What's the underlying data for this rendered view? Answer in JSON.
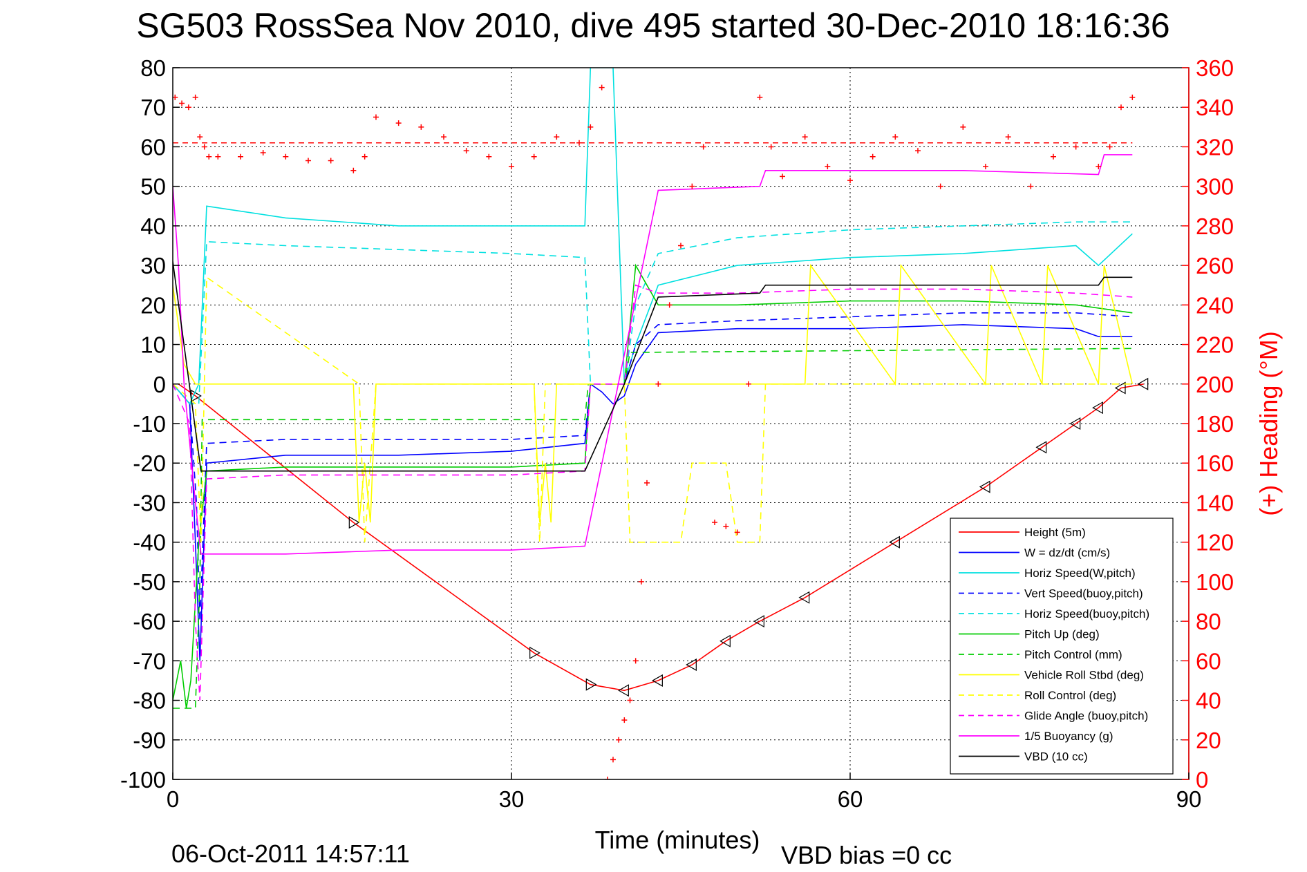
{
  "chart_data": {
    "type": "line",
    "title": "SG503 RossSea Nov 2010, dive 495 started 30-Dec-2010 18:16:36",
    "xlabel": "Time (minutes)",
    "ylabel_right": "(+) Heading (°M)",
    "footer_date": "06-Oct-2011 14:57:11",
    "footer_vbd": "VBD bias =0 cc",
    "xlim": [
      0,
      90
    ],
    "ylim_left": [
      -100,
      80
    ],
    "ylim_right": [
      0,
      360
    ],
    "xticks": [
      0,
      30,
      60,
      90
    ],
    "yticks_left": [
      80,
      70,
      60,
      50,
      40,
      30,
      20,
      10,
      0,
      -10,
      -20,
      -30,
      -40,
      -50,
      -60,
      -70,
      -80,
      -90,
      -100
    ],
    "yticks_right": [
      360,
      340,
      320,
      300,
      280,
      260,
      240,
      220,
      200,
      180,
      160,
      140,
      120,
      100,
      80,
      60,
      40,
      20,
      0
    ],
    "grid": true,
    "legend_position": "bottom-right",
    "heading_reference": 322,
    "series": [
      {
        "name": "Height (5m)",
        "color": "#ff0000",
        "style": "solid",
        "x": [
          0.5,
          2,
          16,
          32,
          37,
          40,
          43,
          46,
          49,
          52,
          56,
          64,
          72,
          77,
          80,
          82,
          84,
          86
        ],
        "y": [
          0,
          -3,
          -35,
          -68,
          -76,
          -77.5,
          -75,
          -71,
          -65,
          -60,
          -54,
          -40,
          -26,
          -16,
          -10,
          -6,
          -1,
          0
        ]
      },
      {
        "name": "W = dz/dt (cm/s)",
        "color": "#0000ff",
        "style": "solid",
        "x": [
          0,
          1.5,
          2.0,
          2.4,
          3,
          10,
          20,
          30,
          36.5,
          37,
          38,
          39,
          40,
          41,
          43,
          50,
          60,
          70,
          80,
          82,
          85
        ],
        "y": [
          0,
          -5,
          -40,
          -70,
          -20,
          -18,
          -18,
          -17,
          -15,
          0,
          -2,
          -5,
          -3,
          5,
          13,
          14,
          14,
          15,
          14,
          12,
          12
        ]
      },
      {
        "name": "Horiz Speed(W,pitch)",
        "color": "#00e0e0",
        "style": "solid",
        "x": [
          0,
          1.5,
          2.3,
          3,
          10,
          20,
          30,
          36.5,
          37,
          38,
          39,
          40,
          41,
          43,
          50,
          60,
          70,
          80,
          82,
          85
        ],
        "y": [
          0,
          -5,
          0,
          45,
          42,
          40,
          40,
          40,
          80,
          80,
          80,
          0,
          10,
          25,
          30,
          32,
          33,
          35,
          30,
          38
        ]
      },
      {
        "name": "Vert Speed(buoy,pitch)",
        "color": "#0000ff",
        "style": "dashed",
        "x": [
          0,
          1.5,
          2.1,
          2.4,
          3,
          10,
          20,
          30,
          36.5,
          37,
          39,
          40,
          41,
          43,
          50,
          60,
          70,
          80,
          85
        ],
        "y": [
          0,
          -5,
          -30,
          -60,
          -15,
          -14,
          -14,
          -14,
          -13,
          0,
          0,
          0,
          10,
          15,
          16,
          17,
          18,
          18,
          17
        ]
      },
      {
        "name": "Horiz Speed(buoy,pitch)",
        "color": "#00e0e0",
        "style": "dashed",
        "x": [
          0,
          1.5,
          2.3,
          3,
          10,
          20,
          30,
          36.5,
          37,
          39,
          40,
          41,
          43,
          50,
          60,
          70,
          80,
          85
        ],
        "y": [
          0,
          -5,
          -5,
          36,
          35,
          34,
          33,
          32,
          0,
          0,
          0,
          20,
          33,
          37,
          39,
          40,
          41,
          41
        ]
      },
      {
        "name": "Pitch Up (deg)",
        "color": "#00cc00",
        "style": "solid",
        "x": [
          0,
          0.7,
          1.2,
          1.6,
          2.3,
          3,
          10,
          20,
          30,
          36.5,
          37,
          39,
          40,
          41,
          43,
          50,
          60,
          70,
          80,
          85
        ],
        "y": [
          -80,
          -70,
          -82,
          -75,
          -40,
          -22,
          -21,
          -21,
          -21,
          -20,
          0,
          0,
          0,
          30,
          20,
          20,
          21,
          21,
          20,
          18
        ]
      },
      {
        "name": "Pitch Control (mm)",
        "color": "#00cc00",
        "style": "dashed",
        "x": [
          0,
          2.0,
          2.4,
          2.6,
          3,
          36.5,
          36.8,
          40,
          40.5,
          41,
          85
        ],
        "y": [
          -82,
          -82,
          -50,
          -9,
          -9,
          -9,
          0,
          0,
          8,
          8,
          9
        ]
      },
      {
        "name": "Vehicle Roll Stbd (deg)",
        "color": "#ffff00",
        "style": "solid",
        "x": [
          0,
          1,
          2,
          3,
          16,
          16.5,
          17,
          17.5,
          18,
          32,
          32.5,
          33,
          33.5,
          34,
          37,
          40,
          44,
          45,
          46,
          48,
          49,
          52,
          52.5,
          56,
          56.5,
          64,
          64.5,
          72,
          72.5,
          77,
          77.5,
          82,
          82.5,
          85
        ],
        "y": [
          25,
          5,
          0,
          0,
          0,
          -35,
          -20,
          -35,
          0,
          0,
          -35,
          -20,
          -35,
          0,
          0,
          0,
          0,
          0,
          0,
          0,
          0,
          0,
          0,
          0,
          30,
          0,
          30,
          0,
          30,
          0,
          30,
          0,
          30,
          0
        ]
      },
      {
        "name": "Roll Control (deg)",
        "color": "#ffff00",
        "style": "dashed",
        "x": [
          0,
          2,
          2.5,
          3,
          16.5,
          17,
          18,
          32,
          32.5,
          33,
          40,
          40.5,
          45,
          46,
          49,
          50,
          52,
          52.5,
          85
        ],
        "y": [
          0,
          -5,
          -40,
          27,
          0,
          -40,
          0,
          0,
          -40,
          0,
          0,
          -40,
          -40,
          -20,
          -20,
          -40,
          -40,
          0,
          0
        ]
      },
      {
        "name": "Glide Angle (buoy,pitch)",
        "color": "#ff00ff",
        "style": "dashed",
        "x": [
          0,
          1.5,
          2.0,
          2.4,
          3,
          10,
          20,
          30,
          36.5,
          37,
          39,
          40,
          41,
          43,
          50,
          60,
          70,
          80,
          85
        ],
        "y": [
          0,
          -10,
          -60,
          -80,
          -24,
          -23,
          -23,
          -23,
          -22,
          0,
          0,
          0,
          25,
          23,
          23,
          24,
          24,
          23,
          22
        ]
      },
      {
        "name": "1/5 Buoyancy (g)",
        "color": "#ff00ff",
        "style": "solid",
        "x": [
          0,
          0.5,
          1,
          2,
          2.5,
          10,
          20,
          30,
          36.5,
          43,
          52,
          52.5,
          70,
          82,
          82.5,
          85
        ],
        "y": [
          50,
          30,
          0,
          -30,
          -43,
          -43,
          -42,
          -42,
          -41,
          49,
          50,
          54,
          54,
          53,
          58,
          58
        ]
      },
      {
        "name": "VBD (10 cc)",
        "color": "#000000",
        "style": "solid",
        "x": [
          0,
          2.5,
          10,
          20,
          30,
          36.5,
          40,
          43,
          52,
          52.5,
          82,
          82.5,
          85
        ],
        "y": [
          31,
          -22,
          -22,
          -22,
          -22,
          -22,
          0,
          22,
          23,
          25,
          25,
          27,
          27
        ]
      },
      {
        "name": "Heading",
        "color": "#ff0000",
        "style": "markers",
        "axis": "right",
        "x": [
          0.2,
          0.8,
          1.4,
          2,
          2.4,
          2.8,
          3.2,
          4,
          6,
          8,
          10,
          12,
          14,
          16,
          17,
          18,
          20,
          22,
          24,
          26,
          28,
          30,
          32,
          34,
          36,
          37,
          38,
          38.5,
          39,
          39.5,
          40,
          40.5,
          41,
          41.5,
          42,
          43,
          44,
          45,
          46,
          47,
          48,
          49,
          50,
          51,
          52,
          53,
          54,
          56,
          58,
          60,
          62,
          64,
          66,
          68,
          70,
          72,
          74,
          76,
          78,
          80,
          82,
          83,
          84,
          85
        ],
        "y": [
          345,
          342,
          340,
          345,
          325,
          320,
          315,
          315,
          315,
          317,
          315,
          313,
          313,
          308,
          315,
          335,
          332,
          330,
          325,
          318,
          315,
          310,
          315,
          325,
          322,
          330,
          350,
          0,
          10,
          20,
          30,
          40,
          60,
          100,
          150,
          200,
          240,
          270,
          300,
          320,
          130,
          128,
          125,
          200,
          345,
          320,
          305,
          325,
          310,
          303,
          315,
          325,
          318,
          300,
          330,
          310,
          325,
          300,
          315,
          320,
          310,
          320,
          340,
          345
        ]
      }
    ]
  },
  "legend": {
    "entries": [
      "Height (5m)",
      "W = dz/dt (cm/s)",
      "Horiz Speed(W,pitch)",
      "Vert Speed(buoy,pitch)",
      "Horiz Speed(buoy,pitch)",
      "Pitch Up (deg)",
      "Pitch Control (mm)",
      "Vehicle Roll Stbd (deg)",
      "Roll Control (deg)",
      "Glide Angle (buoy,pitch)",
      "1/5 Buoyancy (g)",
      "VBD (10 cc)"
    ]
  }
}
